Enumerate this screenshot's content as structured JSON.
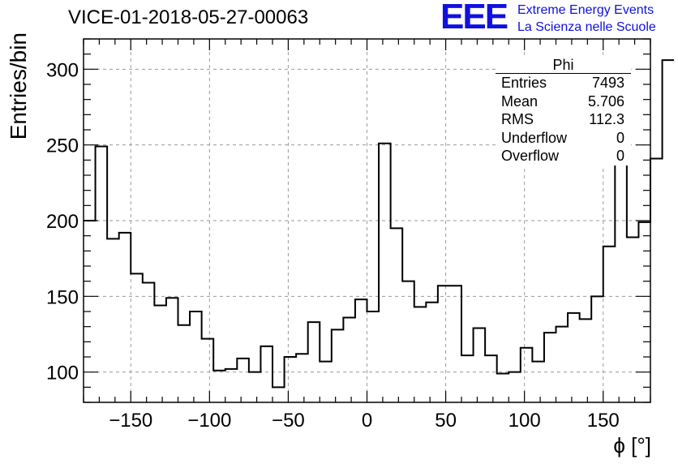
{
  "title": "VICE-01-2018-05-27-00063",
  "logo": {
    "text": "EEE",
    "line1": "Extreme Energy Events",
    "line2": "La Scienza nelle Scuole",
    "color": "#1010e0"
  },
  "stats": {
    "name": "Phi",
    "rows": [
      {
        "label": "Entries",
        "value": "7493"
      },
      {
        "label": "Mean",
        "value": "5.706"
      },
      {
        "label": "RMS",
        "value": "112.3"
      },
      {
        "label": "Underflow",
        "value": "0"
      },
      {
        "label": "Overflow",
        "value": "0"
      }
    ]
  },
  "chart_data": {
    "type": "histogram",
    "xlabel": "ϕ [°]",
    "ylabel": "Entries/bin",
    "xlim": [
      -180,
      180
    ],
    "ylim": [
      80,
      320
    ],
    "bin_width": 7.5,
    "grid": true,
    "x_ticks": [
      -150,
      -100,
      -50,
      0,
      50,
      100,
      150
    ],
    "y_ticks": [
      100,
      150,
      200,
      250,
      300
    ],
    "bin_edges_start": -180,
    "values": [
      200,
      249,
      188,
      192,
      165,
      159,
      144,
      149,
      131,
      140,
      122,
      101,
      102,
      109,
      100,
      117,
      90,
      110,
      112,
      133,
      107,
      128,
      136,
      148,
      140,
      251,
      195,
      160,
      143,
      146,
      157,
      157,
      111,
      129,
      111,
      99,
      100,
      116,
      107,
      126,
      130,
      139,
      135,
      150,
      183,
      241,
      189,
      199,
      241,
      306
    ],
    "line_color": "#000000"
  }
}
